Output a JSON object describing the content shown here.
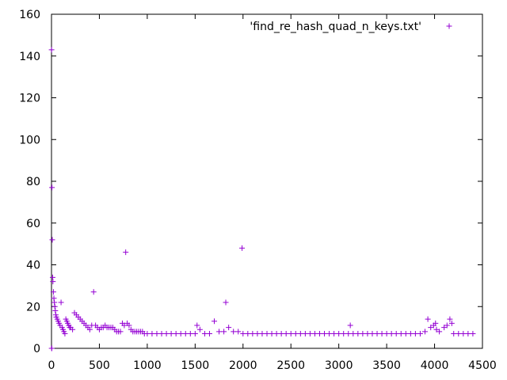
{
  "chart_data": {
    "type": "scatter",
    "title": "",
    "xlabel": "",
    "ylabel": "",
    "xlim": [
      0,
      4500
    ],
    "ylim": [
      0,
      160
    ],
    "xticks": [
      0,
      500,
      1000,
      1500,
      2000,
      2500,
      3000,
      3500,
      4000,
      4500
    ],
    "yticks": [
      0,
      20,
      40,
      60,
      80,
      100,
      120,
      140,
      160
    ],
    "xtick_labels": [
      "0",
      "500",
      "1000",
      "1500",
      "2000",
      "2500",
      "3000",
      "3500",
      "4000",
      "4500"
    ],
    "ytick_labels": [
      "0",
      "20",
      "40",
      "60",
      "80",
      "100",
      "120",
      "140",
      "160"
    ],
    "grid": false,
    "legend_position": "top-right",
    "series": [
      {
        "name": "'find_re_hash_quad_n_keys.txt'",
        "color": "#9400d3",
        "marker": "plus",
        "points": [
          [
            1,
            143
          ],
          [
            2,
            0
          ],
          [
            3,
            0
          ],
          [
            5,
            77
          ],
          [
            8,
            52
          ],
          [
            12,
            34
          ],
          [
            15,
            32
          ],
          [
            20,
            27
          ],
          [
            25,
            24
          ],
          [
            30,
            22
          ],
          [
            35,
            20
          ],
          [
            40,
            18
          ],
          [
            45,
            16
          ],
          [
            50,
            15
          ],
          [
            60,
            14
          ],
          [
            70,
            13
          ],
          [
            80,
            12
          ],
          [
            90,
            11
          ],
          [
            100,
            22
          ],
          [
            110,
            10
          ],
          [
            120,
            9
          ],
          [
            130,
            8
          ],
          [
            140,
            7
          ],
          [
            150,
            14
          ],
          [
            160,
            13
          ],
          [
            170,
            12
          ],
          [
            180,
            11
          ],
          [
            190,
            10
          ],
          [
            200,
            10
          ],
          [
            220,
            9
          ],
          [
            240,
            17
          ],
          [
            260,
            16
          ],
          [
            280,
            15
          ],
          [
            300,
            14
          ],
          [
            320,
            13
          ],
          [
            340,
            12
          ],
          [
            360,
            11
          ],
          [
            380,
            10
          ],
          [
            400,
            9
          ],
          [
            420,
            11
          ],
          [
            440,
            27
          ],
          [
            460,
            11
          ],
          [
            480,
            10
          ],
          [
            500,
            9
          ],
          [
            520,
            10
          ],
          [
            540,
            10
          ],
          [
            560,
            11
          ],
          [
            580,
            10
          ],
          [
            600,
            10
          ],
          [
            620,
            10
          ],
          [
            640,
            10
          ],
          [
            660,
            9
          ],
          [
            680,
            8
          ],
          [
            700,
            8
          ],
          [
            720,
            8
          ],
          [
            740,
            12
          ],
          [
            760,
            11
          ],
          [
            775,
            46
          ],
          [
            790,
            12
          ],
          [
            810,
            11
          ],
          [
            830,
            9
          ],
          [
            850,
            8
          ],
          [
            870,
            8
          ],
          [
            890,
            8
          ],
          [
            910,
            8
          ],
          [
            930,
            8
          ],
          [
            950,
            8
          ],
          [
            970,
            7
          ],
          [
            1000,
            7
          ],
          [
            1050,
            7
          ],
          [
            1100,
            7
          ],
          [
            1150,
            7
          ],
          [
            1200,
            7
          ],
          [
            1250,
            7
          ],
          [
            1300,
            7
          ],
          [
            1350,
            7
          ],
          [
            1400,
            7
          ],
          [
            1450,
            7
          ],
          [
            1500,
            7
          ],
          [
            1520,
            11
          ],
          [
            1550,
            9
          ],
          [
            1600,
            7
          ],
          [
            1650,
            7
          ],
          [
            1700,
            13
          ],
          [
            1750,
            8
          ],
          [
            1800,
            8
          ],
          [
            1820,
            22
          ],
          [
            1850,
            10
          ],
          [
            1900,
            8
          ],
          [
            1950,
            8
          ],
          [
            1990,
            48
          ],
          [
            2000,
            7
          ],
          [
            2050,
            7
          ],
          [
            2100,
            7
          ],
          [
            2150,
            7
          ],
          [
            2200,
            7
          ],
          [
            2250,
            7
          ],
          [
            2300,
            7
          ],
          [
            2350,
            7
          ],
          [
            2400,
            7
          ],
          [
            2450,
            7
          ],
          [
            2500,
            7
          ],
          [
            2550,
            7
          ],
          [
            2600,
            7
          ],
          [
            2650,
            7
          ],
          [
            2700,
            7
          ],
          [
            2750,
            7
          ],
          [
            2800,
            7
          ],
          [
            2850,
            7
          ],
          [
            2900,
            7
          ],
          [
            2950,
            7
          ],
          [
            3000,
            7
          ],
          [
            3050,
            7
          ],
          [
            3100,
            7
          ],
          [
            3120,
            11
          ],
          [
            3150,
            7
          ],
          [
            3200,
            7
          ],
          [
            3250,
            7
          ],
          [
            3300,
            7
          ],
          [
            3350,
            7
          ],
          [
            3400,
            7
          ],
          [
            3450,
            7
          ],
          [
            3500,
            7
          ],
          [
            3550,
            7
          ],
          [
            3600,
            7
          ],
          [
            3650,
            7
          ],
          [
            3700,
            7
          ],
          [
            3750,
            7
          ],
          [
            3800,
            7
          ],
          [
            3850,
            7
          ],
          [
            3900,
            8
          ],
          [
            3930,
            14
          ],
          [
            3960,
            10
          ],
          [
            3990,
            11
          ],
          [
            4010,
            12
          ],
          [
            4020,
            9
          ],
          [
            4050,
            8
          ],
          [
            4100,
            10
          ],
          [
            4130,
            11
          ],
          [
            4160,
            14
          ],
          [
            4180,
            12
          ],
          [
            4200,
            7
          ],
          [
            4250,
            7
          ],
          [
            4300,
            7
          ],
          [
            4350,
            7
          ],
          [
            4400,
            7
          ]
        ]
      }
    ]
  }
}
